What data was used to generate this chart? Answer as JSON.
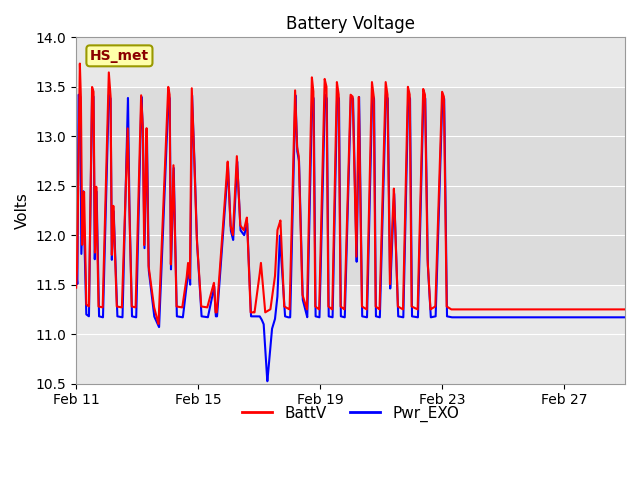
{
  "title": "Battery Voltage",
  "ylabel": "Volts",
  "ylim": [
    10.5,
    14.0
  ],
  "yticks": [
    10.5,
    11.0,
    11.5,
    12.0,
    12.5,
    13.0,
    13.5,
    14.0
  ],
  "xlim": [
    0,
    18
  ],
  "xtick_labels": [
    "Feb 11",
    "Feb 15",
    "Feb 19",
    "Feb 23",
    "Feb 27"
  ],
  "xtick_positions": [
    0,
    4,
    8,
    12,
    16
  ],
  "legend_labels": [
    "BattV",
    "Pwr_EXO"
  ],
  "legend_colors": [
    "red",
    "blue"
  ],
  "annotation_text": "HS_met",
  "line_width": 1.5,
  "plot_bg_color": "#e8e8e8",
  "grid_color": "#ffffff",
  "title_fontsize": 12,
  "label_fontsize": 11,
  "tick_fontsize": 10,
  "annot_fontsize": 10,
  "legend_fontsize": 11
}
